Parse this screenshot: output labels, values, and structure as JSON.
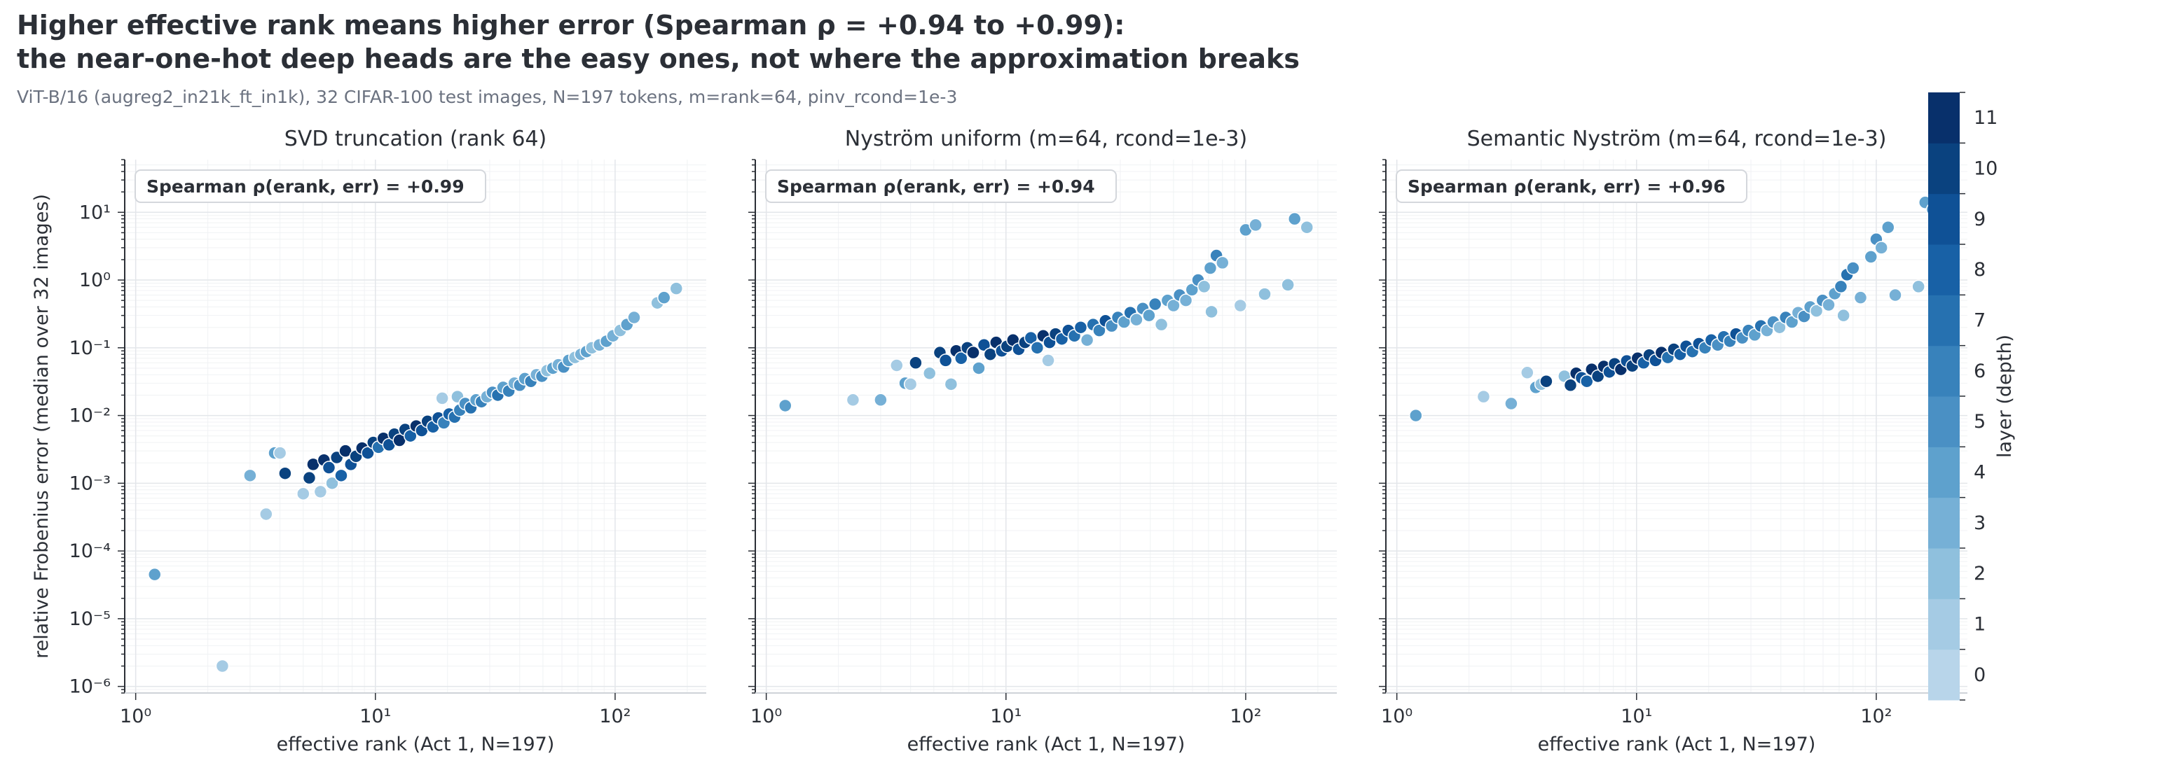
{
  "title_line1": "Higher effective rank means higher error (Spearman ρ = +0.94 to +0.99):",
  "title_line2": "the near-one-hot deep heads are the easy ones, not where the approximation breaks",
  "subtitle": "ViT-B/16 (augreg2_in21k_ft_in1k), 32 CIFAR-100 test images, N=197 tokens, m=rank=64, pinv_rcond=1e-3",
  "colors": {
    "layers": [
      "#b8d5ea",
      "#a5cbe4",
      "#8fc0dd",
      "#76b0d6",
      "#5ea1cd",
      "#4a90c4",
      "#3882bb",
      "#2671b0",
      "#1861a6",
      "#0f5196",
      "#0a427f",
      "#08306b"
    ],
    "grid": "#e3e6ea",
    "axis": "#2b2f36",
    "text": "#2b2f36"
  },
  "colorbar": {
    "label": "layer (depth)",
    "ticks": [
      "0",
      "1",
      "2",
      "3",
      "4",
      "5",
      "6",
      "7",
      "8",
      "9",
      "10",
      "11"
    ]
  },
  "chart_data": [
    {
      "type": "scatter",
      "title": "SVD truncation (rank 64)",
      "xlabel": "effective rank  (Act 1, N=197)",
      "ylabel": "relative Frobenius error  (median over 32 images)",
      "xscale": "log",
      "yscale": "log",
      "xlim": [
        0.9,
        240
      ],
      "ylim": [
        8e-07,
        60
      ],
      "xticks": [
        "10⁰",
        "10¹",
        "10²"
      ],
      "yticks": [
        "10⁻⁶",
        "10⁻⁵",
        "10⁻⁴",
        "10⁻³",
        "10⁻²",
        "10⁻¹",
        "10⁰",
        "10¹"
      ],
      "grid": true,
      "annotation": "Spearman ρ(erank, err) = +0.99",
      "points": [
        {
          "x": 1.2,
          "y": 4.5e-05,
          "layer": 4
        },
        {
          "x": 2.3,
          "y": 2e-06,
          "layer": 1
        },
        {
          "x": 3.0,
          "y": 0.0013,
          "layer": 3
        },
        {
          "x": 3.5,
          "y": 0.00035,
          "layer": 1
        },
        {
          "x": 3.8,
          "y": 0.0028,
          "layer": 4
        },
        {
          "x": 4.0,
          "y": 0.0028,
          "layer": 1
        },
        {
          "x": 4.2,
          "y": 0.0014,
          "layer": 10
        },
        {
          "x": 5.0,
          "y": 0.0007,
          "layer": 1
        },
        {
          "x": 5.3,
          "y": 0.0012,
          "layer": 10
        },
        {
          "x": 5.5,
          "y": 0.0019,
          "layer": 11
        },
        {
          "x": 5.9,
          "y": 0.00075,
          "layer": 1
        },
        {
          "x": 6.1,
          "y": 0.0022,
          "layer": 11
        },
        {
          "x": 6.4,
          "y": 0.0017,
          "layer": 9
        },
        {
          "x": 6.6,
          "y": 0.001,
          "layer": 2
        },
        {
          "x": 6.9,
          "y": 0.0024,
          "layer": 10
        },
        {
          "x": 7.2,
          "y": 0.0013,
          "layer": 8
        },
        {
          "x": 7.5,
          "y": 0.003,
          "layer": 11
        },
        {
          "x": 7.9,
          "y": 0.0019,
          "layer": 9
        },
        {
          "x": 8.3,
          "y": 0.0025,
          "layer": 10
        },
        {
          "x": 8.8,
          "y": 0.0033,
          "layer": 11
        },
        {
          "x": 9.3,
          "y": 0.0028,
          "layer": 9
        },
        {
          "x": 9.8,
          "y": 0.004,
          "layer": 10
        },
        {
          "x": 10.3,
          "y": 0.0034,
          "layer": 7
        },
        {
          "x": 10.8,
          "y": 0.0046,
          "layer": 11
        },
        {
          "x": 11.4,
          "y": 0.0037,
          "layer": 9
        },
        {
          "x": 12.0,
          "y": 0.0053,
          "layer": 10
        },
        {
          "x": 12.6,
          "y": 0.0043,
          "layer": 11
        },
        {
          "x": 13.3,
          "y": 0.0062,
          "layer": 10
        },
        {
          "x": 14.0,
          "y": 0.005,
          "layer": 8
        },
        {
          "x": 14.8,
          "y": 0.007,
          "layer": 11
        },
        {
          "x": 15.6,
          "y": 0.006,
          "layer": 9
        },
        {
          "x": 16.5,
          "y": 0.0082,
          "layer": 10
        },
        {
          "x": 17.4,
          "y": 0.0068,
          "layer": 8
        },
        {
          "x": 18.3,
          "y": 0.0092,
          "layer": 9
        },
        {
          "x": 19.3,
          "y": 0.0078,
          "layer": 6
        },
        {
          "x": 20.3,
          "y": 0.0105,
          "layer": 8
        },
        {
          "x": 19.0,
          "y": 0.018,
          "layer": 1
        },
        {
          "x": 21.4,
          "y": 0.0095,
          "layer": 7
        },
        {
          "x": 22.5,
          "y": 0.012,
          "layer": 6
        },
        {
          "x": 22.0,
          "y": 0.019,
          "layer": 2
        },
        {
          "x": 23.7,
          "y": 0.015,
          "layer": 5
        },
        {
          "x": 25.0,
          "y": 0.013,
          "layer": 7
        },
        {
          "x": 26.3,
          "y": 0.017,
          "layer": 4
        },
        {
          "x": 27.7,
          "y": 0.016,
          "layer": 6
        },
        {
          "x": 29.2,
          "y": 0.019,
          "layer": 3
        },
        {
          "x": 30.8,
          "y": 0.022,
          "layer": 5
        },
        {
          "x": 32.4,
          "y": 0.02,
          "layer": 7
        },
        {
          "x": 34.1,
          "y": 0.026,
          "layer": 4
        },
        {
          "x": 36.0,
          "y": 0.023,
          "layer": 6
        },
        {
          "x": 38.0,
          "y": 0.03,
          "layer": 3
        },
        {
          "x": 40.0,
          "y": 0.028,
          "layer": 5
        },
        {
          "x": 42.0,
          "y": 0.035,
          "layer": 4
        },
        {
          "x": 44.5,
          "y": 0.032,
          "layer": 6
        },
        {
          "x": 47.0,
          "y": 0.04,
          "layer": 3
        },
        {
          "x": 49.5,
          "y": 0.038,
          "layer": 5
        },
        {
          "x": 52.0,
          "y": 0.046,
          "layer": 2
        },
        {
          "x": 55.0,
          "y": 0.05,
          "layer": 4
        },
        {
          "x": 58.0,
          "y": 0.056,
          "layer": 3
        },
        {
          "x": 61.0,
          "y": 0.052,
          "layer": 5
        },
        {
          "x": 64.0,
          "y": 0.065,
          "layer": 4
        },
        {
          "x": 68.0,
          "y": 0.072,
          "layer": 2
        },
        {
          "x": 72.0,
          "y": 0.08,
          "layer": 3
        },
        {
          "x": 76.0,
          "y": 0.088,
          "layer": 4
        },
        {
          "x": 80.0,
          "y": 0.1,
          "layer": 2
        },
        {
          "x": 86.0,
          "y": 0.11,
          "layer": 3
        },
        {
          "x": 92.0,
          "y": 0.125,
          "layer": 4
        },
        {
          "x": 98.0,
          "y": 0.15,
          "layer": 3
        },
        {
          "x": 105.0,
          "y": 0.18,
          "layer": 2
        },
        {
          "x": 112.0,
          "y": 0.22,
          "layer": 4
        },
        {
          "x": 120.0,
          "y": 0.28,
          "layer": 3
        },
        {
          "x": 150.0,
          "y": 0.46,
          "layer": 2
        },
        {
          "x": 160.0,
          "y": 0.55,
          "layer": 4
        },
        {
          "x": 180.0,
          "y": 0.75,
          "layer": 2
        }
      ]
    },
    {
      "type": "scatter",
      "title": "Nyström uniform (m=64, rcond=1e-3)",
      "xlabel": "effective rank  (Act 1, N=197)",
      "xscale": "log",
      "yscale": "log",
      "xlim": [
        0.9,
        240
      ],
      "ylim": [
        8e-07,
        60
      ],
      "xticks": [
        "10⁰",
        "10¹",
        "10²"
      ],
      "grid": true,
      "annotation": "Spearman ρ(erank, err) = +0.94",
      "points": [
        {
          "x": 1.2,
          "y": 0.014,
          "layer": 4
        },
        {
          "x": 2.3,
          "y": 0.017,
          "layer": 1
        },
        {
          "x": 3.0,
          "y": 0.017,
          "layer": 3
        },
        {
          "x": 3.5,
          "y": 0.055,
          "layer": 1
        },
        {
          "x": 3.8,
          "y": 0.03,
          "layer": 4
        },
        {
          "x": 4.0,
          "y": 0.029,
          "layer": 1
        },
        {
          "x": 4.2,
          "y": 0.06,
          "layer": 10
        },
        {
          "x": 4.8,
          "y": 0.042,
          "layer": 2
        },
        {
          "x": 5.3,
          "y": 0.085,
          "layer": 10
        },
        {
          "x": 5.6,
          "y": 0.065,
          "layer": 9
        },
        {
          "x": 5.9,
          "y": 0.029,
          "layer": 2
        },
        {
          "x": 6.2,
          "y": 0.09,
          "layer": 11
        },
        {
          "x": 6.5,
          "y": 0.07,
          "layer": 8
        },
        {
          "x": 6.9,
          "y": 0.1,
          "layer": 10
        },
        {
          "x": 7.3,
          "y": 0.085,
          "layer": 11
        },
        {
          "x": 7.7,
          "y": 0.05,
          "layer": 4
        },
        {
          "x": 8.1,
          "y": 0.11,
          "layer": 9
        },
        {
          "x": 8.6,
          "y": 0.08,
          "layer": 10
        },
        {
          "x": 9.1,
          "y": 0.12,
          "layer": 11
        },
        {
          "x": 9.6,
          "y": 0.09,
          "layer": 9
        },
        {
          "x": 10.1,
          "y": 0.105,
          "layer": 10
        },
        {
          "x": 10.7,
          "y": 0.13,
          "layer": 11
        },
        {
          "x": 11.3,
          "y": 0.095,
          "layer": 9
        },
        {
          "x": 12.0,
          "y": 0.12,
          "layer": 10
        },
        {
          "x": 12.7,
          "y": 0.14,
          "layer": 8
        },
        {
          "x": 13.5,
          "y": 0.1,
          "layer": 7
        },
        {
          "x": 14.3,
          "y": 0.15,
          "layer": 11
        },
        {
          "x": 15.0,
          "y": 0.065,
          "layer": 1
        },
        {
          "x": 15.2,
          "y": 0.12,
          "layer": 9
        },
        {
          "x": 16.1,
          "y": 0.16,
          "layer": 10
        },
        {
          "x": 17.1,
          "y": 0.135,
          "layer": 8
        },
        {
          "x": 18.2,
          "y": 0.18,
          "layer": 9
        },
        {
          "x": 19.3,
          "y": 0.15,
          "layer": 7
        },
        {
          "x": 20.5,
          "y": 0.2,
          "layer": 8
        },
        {
          "x": 21.8,
          "y": 0.13,
          "layer": 3
        },
        {
          "x": 23.1,
          "y": 0.22,
          "layer": 7
        },
        {
          "x": 24.5,
          "y": 0.18,
          "layer": 6
        },
        {
          "x": 26.0,
          "y": 0.25,
          "layer": 9
        },
        {
          "x": 27.6,
          "y": 0.21,
          "layer": 5
        },
        {
          "x": 29.3,
          "y": 0.28,
          "layer": 6
        },
        {
          "x": 31.1,
          "y": 0.24,
          "layer": 4
        },
        {
          "x": 33.0,
          "y": 0.33,
          "layer": 7
        },
        {
          "x": 35.0,
          "y": 0.26,
          "layer": 3
        },
        {
          "x": 37.2,
          "y": 0.38,
          "layer": 5
        },
        {
          "x": 39.5,
          "y": 0.3,
          "layer": 4
        },
        {
          "x": 41.9,
          "y": 0.44,
          "layer": 6
        },
        {
          "x": 44.5,
          "y": 0.22,
          "layer": 2
        },
        {
          "x": 47.2,
          "y": 0.5,
          "layer": 4
        },
        {
          "x": 50.0,
          "y": 0.42,
          "layer": 3
        },
        {
          "x": 53.0,
          "y": 0.6,
          "layer": 5
        },
        {
          "x": 56.3,
          "y": 0.5,
          "layer": 3
        },
        {
          "x": 59.7,
          "y": 0.72,
          "layer": 4
        },
        {
          "x": 63.3,
          "y": 1.0,
          "layer": 5
        },
        {
          "x": 67.1,
          "y": 0.8,
          "layer": 2
        },
        {
          "x": 71.2,
          "y": 1.5,
          "layer": 4
        },
        {
          "x": 75.5,
          "y": 2.3,
          "layer": 6
        },
        {
          "x": 72.0,
          "y": 0.34,
          "layer": 2
        },
        {
          "x": 80.0,
          "y": 1.8,
          "layer": 3
        },
        {
          "x": 95.0,
          "y": 0.42,
          "layer": 1
        },
        {
          "x": 100.0,
          "y": 5.5,
          "layer": 4
        },
        {
          "x": 110.0,
          "y": 6.5,
          "layer": 3
        },
        {
          "x": 120.0,
          "y": 0.62,
          "layer": 2
        },
        {
          "x": 150.0,
          "y": 0.85,
          "layer": 2
        },
        {
          "x": 160.0,
          "y": 8.0,
          "layer": 4
        },
        {
          "x": 180.0,
          "y": 6.0,
          "layer": 2
        }
      ]
    },
    {
      "type": "scatter",
      "title": "Semantic Nyström (m=64, rcond=1e-3)",
      "xlabel": "effective rank  (Act 1, N=197)",
      "xscale": "log",
      "yscale": "log",
      "xlim": [
        0.9,
        240
      ],
      "ylim": [
        8e-07,
        60
      ],
      "xticks": [
        "10⁰",
        "10¹",
        "10²"
      ],
      "grid": true,
      "annotation": "Spearman ρ(erank, err) = +0.96",
      "points": [
        {
          "x": 1.2,
          "y": 0.01,
          "layer": 4
        },
        {
          "x": 2.3,
          "y": 0.019,
          "layer": 1
        },
        {
          "x": 3.0,
          "y": 0.015,
          "layer": 3
        },
        {
          "x": 3.5,
          "y": 0.043,
          "layer": 1
        },
        {
          "x": 3.8,
          "y": 0.026,
          "layer": 4
        },
        {
          "x": 4.0,
          "y": 0.029,
          "layer": 2
        },
        {
          "x": 4.2,
          "y": 0.032,
          "layer": 10
        },
        {
          "x": 5.0,
          "y": 0.038,
          "layer": 2
        },
        {
          "x": 5.3,
          "y": 0.028,
          "layer": 10
        },
        {
          "x": 5.6,
          "y": 0.042,
          "layer": 11
        },
        {
          "x": 5.9,
          "y": 0.036,
          "layer": 9
        },
        {
          "x": 6.2,
          "y": 0.032,
          "layer": 8
        },
        {
          "x": 6.5,
          "y": 0.048,
          "layer": 11
        },
        {
          "x": 6.9,
          "y": 0.038,
          "layer": 10
        },
        {
          "x": 7.3,
          "y": 0.053,
          "layer": 11
        },
        {
          "x": 7.7,
          "y": 0.044,
          "layer": 9
        },
        {
          "x": 8.1,
          "y": 0.058,
          "layer": 10
        },
        {
          "x": 8.6,
          "y": 0.048,
          "layer": 11
        },
        {
          "x": 9.1,
          "y": 0.064,
          "layer": 9
        },
        {
          "x": 9.6,
          "y": 0.054,
          "layer": 10
        },
        {
          "x": 10.1,
          "y": 0.07,
          "layer": 11
        },
        {
          "x": 10.7,
          "y": 0.06,
          "layer": 8
        },
        {
          "x": 11.3,
          "y": 0.078,
          "layer": 10
        },
        {
          "x": 12.0,
          "y": 0.065,
          "layer": 9
        },
        {
          "x": 12.7,
          "y": 0.085,
          "layer": 11
        },
        {
          "x": 13.5,
          "y": 0.072,
          "layer": 7
        },
        {
          "x": 14.3,
          "y": 0.095,
          "layer": 10
        },
        {
          "x": 15.2,
          "y": 0.08,
          "layer": 8
        },
        {
          "x": 16.1,
          "y": 0.105,
          "layer": 9
        },
        {
          "x": 17.1,
          "y": 0.088,
          "layer": 7
        },
        {
          "x": 18.2,
          "y": 0.115,
          "layer": 9
        },
        {
          "x": 19.3,
          "y": 0.1,
          "layer": 6
        },
        {
          "x": 20.5,
          "y": 0.13,
          "layer": 8
        },
        {
          "x": 21.8,
          "y": 0.11,
          "layer": 5
        },
        {
          "x": 23.1,
          "y": 0.145,
          "layer": 7
        },
        {
          "x": 24.5,
          "y": 0.125,
          "layer": 6
        },
        {
          "x": 26.0,
          "y": 0.16,
          "layer": 9
        },
        {
          "x": 27.6,
          "y": 0.14,
          "layer": 5
        },
        {
          "x": 29.3,
          "y": 0.18,
          "layer": 6
        },
        {
          "x": 31.1,
          "y": 0.155,
          "layer": 4
        },
        {
          "x": 33.0,
          "y": 0.21,
          "layer": 7
        },
        {
          "x": 35.0,
          "y": 0.18,
          "layer": 3
        },
        {
          "x": 37.2,
          "y": 0.24,
          "layer": 5
        },
        {
          "x": 39.5,
          "y": 0.2,
          "layer": 2
        },
        {
          "x": 41.9,
          "y": 0.28,
          "layer": 6
        },
        {
          "x": 44.5,
          "y": 0.24,
          "layer": 4
        },
        {
          "x": 47.2,
          "y": 0.33,
          "layer": 3
        },
        {
          "x": 50.0,
          "y": 0.29,
          "layer": 5
        },
        {
          "x": 53.0,
          "y": 0.4,
          "layer": 4
        },
        {
          "x": 56.3,
          "y": 0.35,
          "layer": 2
        },
        {
          "x": 59.7,
          "y": 0.5,
          "layer": 5
        },
        {
          "x": 63.3,
          "y": 0.43,
          "layer": 3
        },
        {
          "x": 67.1,
          "y": 0.63,
          "layer": 4
        },
        {
          "x": 71.2,
          "y": 0.8,
          "layer": 6
        },
        {
          "x": 73.0,
          "y": 0.3,
          "layer": 2
        },
        {
          "x": 75.5,
          "y": 1.2,
          "layer": 7
        },
        {
          "x": 80.0,
          "y": 1.5,
          "layer": 5
        },
        {
          "x": 86.0,
          "y": 0.55,
          "layer": 3
        },
        {
          "x": 95.0,
          "y": 2.2,
          "layer": 4
        },
        {
          "x": 100.0,
          "y": 4.0,
          "layer": 5
        },
        {
          "x": 105.0,
          "y": 3.0,
          "layer": 3
        },
        {
          "x": 112.0,
          "y": 6.0,
          "layer": 4
        },
        {
          "x": 120.0,
          "y": 0.6,
          "layer": 3
        },
        {
          "x": 150.0,
          "y": 0.8,
          "layer": 2
        },
        {
          "x": 160.0,
          "y": 14.0,
          "layer": 4
        },
        {
          "x": 172.0,
          "y": 11.0,
          "layer": 5
        }
      ]
    }
  ]
}
